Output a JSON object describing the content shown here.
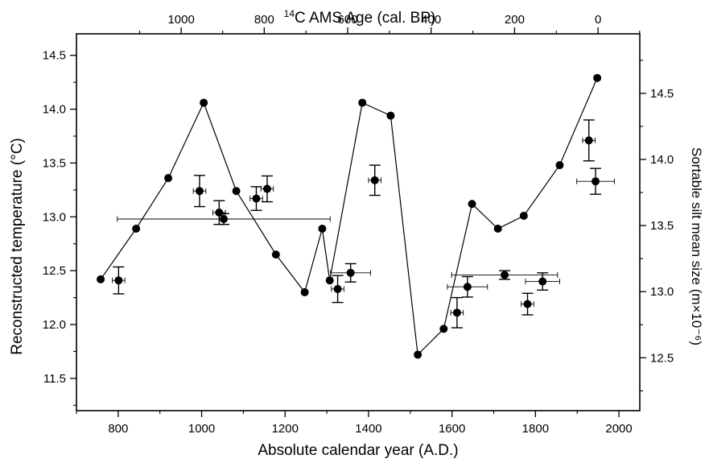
{
  "chart_data": {
    "type": "scatter",
    "title": "",
    "xlabel": "Absolute calendar year (A.D.)",
    "ylabel": "Reconstructed temperature (°C)",
    "y2label": "Sortable silt mean size (m×10⁻⁶)",
    "x2label_parts": {
      "sup": "14",
      "rest": "C AMS Age (cal. BP)"
    },
    "xlim": [
      700,
      2050
    ],
    "ylim": [
      11.2,
      14.7
    ],
    "y2lim": [
      12.1,
      14.95
    ],
    "x_ticks": [
      800,
      1000,
      1200,
      1400,
      1600,
      1800,
      2000
    ],
    "y_ticks": [
      11.5,
      12.0,
      12.5,
      13.0,
      13.5,
      14.0,
      14.5
    ],
    "y2_ticks": [
      12.5,
      13.0,
      13.5,
      14.0,
      14.5
    ],
    "x2_ticks": [
      {
        "label": "1000",
        "year": 951
      },
      {
        "label": "800",
        "year": 1150
      },
      {
        "label": "600",
        "year": 1350
      },
      {
        "label": "400",
        "year": 1550
      },
      {
        "label": "200",
        "year": 1750
      },
      {
        "label": "0",
        "year": 1950
      }
    ],
    "grid": false,
    "series": [
      {
        "kind": "line-markers",
        "axis": "left",
        "x": [
          758,
          843,
          920,
          1005,
          1083,
          1178,
          1247,
          1289,
          1307,
          1385,
          1453,
          1518,
          1580,
          1648,
          1710,
          1772,
          1858,
          1948
        ],
        "y": [
          12.42,
          12.89,
          13.36,
          14.06,
          13.24,
          12.65,
          12.3,
          12.89,
          12.41,
          14.06,
          13.94,
          11.72,
          11.96,
          13.12,
          12.89,
          13.01,
          13.48,
          14.29
        ]
      },
      {
        "kind": "points-errorbars",
        "axis": "left",
        "points": [
          {
            "x": 801,
            "y": 12.41,
            "xerr": 15,
            "yerr": 0.125
          },
          {
            "x": 995,
            "y": 13.24,
            "xerr": 15,
            "yerr": 0.145
          },
          {
            "x": 1042,
            "y": 13.04,
            "xerr": 15,
            "yerr": 0.11
          },
          {
            "x": 1053,
            "y": 12.98,
            "xerr": 255,
            "yerr": 0.05
          },
          {
            "x": 1131,
            "y": 13.17,
            "xerr": 15,
            "yerr": 0.11
          },
          {
            "x": 1157,
            "y": 13.26,
            "xerr": 15,
            "yerr": 0.12
          },
          {
            "x": 1326,
            "y": 12.33,
            "xerr": 15,
            "yerr": 0.125
          },
          {
            "x": 1357,
            "y": 12.48,
            "xerr": 48,
            "yerr": 0.085
          },
          {
            "x": 1415,
            "y": 13.34,
            "xerr": 15,
            "yerr": 0.14
          },
          {
            "x": 1612,
            "y": 12.11,
            "xerr": 15,
            "yerr": 0.14
          },
          {
            "x": 1637,
            "y": 12.35,
            "xerr": 48,
            "yerr": 0.095
          },
          {
            "x": 1726,
            "y": 12.46,
            "xerr": 127,
            "yerr": 0.04
          },
          {
            "x": 1781,
            "y": 12.19,
            "xerr": 15,
            "yerr": 0.1
          },
          {
            "x": 1817,
            "y": 12.4,
            "xerr": 41,
            "yerr": 0.08
          },
          {
            "x": 1928,
            "y": 13.71,
            "xerr": 15,
            "yerr": 0.19
          },
          {
            "x": 1944,
            "y": 13.33,
            "xerr": 45,
            "yerr": 0.12
          }
        ]
      }
    ]
  }
}
